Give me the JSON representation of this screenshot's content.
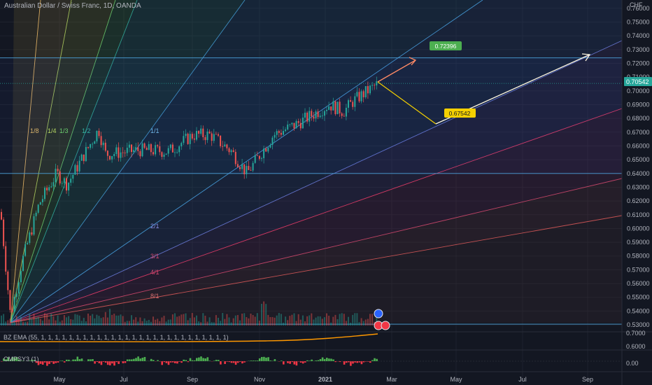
{
  "header": {
    "title": "Australian Dollar / Swiss Franc, 1D, OANDA",
    "currency": "CHF"
  },
  "price_axis": {
    "ticks": [
      "0.76000",
      "0.75000",
      "0.74000",
      "0.73000",
      "0.72000",
      "0.71000",
      "0.70000",
      "0.69000",
      "0.68000",
      "0.67000",
      "0.66000",
      "0.65000",
      "0.64000",
      "0.63000",
      "0.62000",
      "0.61000",
      "0.60000",
      "0.59000",
      "0.58000",
      "0.57000",
      "0.56000",
      "0.55000",
      "0.54000",
      "0.53000"
    ],
    "last_price": "0.70542",
    "last_price_color": "#26a69a"
  },
  "time_axis": {
    "ticks": [
      "May",
      "Jul",
      "Sep",
      "Nov",
      "2021",
      "Mar",
      "May",
      "Jul",
      "Sep"
    ]
  },
  "gann_fan": {
    "labels": [
      "1/8",
      "1/4",
      "1/3",
      "1/2",
      "1/1",
      "2/1",
      "3/1",
      "4/1",
      "8/1"
    ]
  },
  "annotations": {
    "target_up": "0.72396",
    "target_down": "0.67542",
    "target_up_color": "#4caf50",
    "target_down_color": "#f5d000"
  },
  "indicators": {
    "ema": {
      "label": "BZ EMA (55, 1, 1, 1, 1, 1, 1, 1, 1, 1, 1, 1, 1, 1, 1, 1, 1, 1, 1, 1, 1, 1, 1, 1, 1, 1, 1, 1)",
      "ticks": [
        "0.7000",
        "0.6000"
      ],
      "line_color": "#ff9800"
    },
    "cmp": {
      "label": "CMPSY3 (1)",
      "ticks": [
        "0.00"
      ],
      "up_color": "#4caf50",
      "down_color": "#f23645"
    }
  },
  "chart_data": {
    "type": "candlestick",
    "symbol": "Australian Dollar / Swiss Franc",
    "interval": "1D",
    "source": "OANDA",
    "ylim": [
      0.5285,
      0.7645
    ],
    "series": [
      {
        "name": "price",
        "points": [
          {
            "x": "Mar",
            "y": 0.612
          },
          {
            "x": "Mar",
            "y": 0.536
          },
          {
            "x": "Apr",
            "y": 0.575
          },
          {
            "x": "Apr",
            "y": 0.618
          },
          {
            "x": "May",
            "y": 0.64
          },
          {
            "x": "May",
            "y": 0.632
          },
          {
            "x": "Jun",
            "y": 0.672
          },
          {
            "x": "Jun",
            "y": 0.654
          },
          {
            "x": "Jul",
            "y": 0.657
          },
          {
            "x": "Aug",
            "y": 0.656
          },
          {
            "x": "Aug",
            "y": 0.668
          },
          {
            "x": "Sep",
            "y": 0.668
          },
          {
            "x": "Oct",
            "y": 0.656
          },
          {
            "x": "Oct",
            "y": 0.64
          },
          {
            "x": "Nov",
            "y": 0.668
          },
          {
            "x": "Dec",
            "y": 0.675
          },
          {
            "x": "Dec",
            "y": 0.69
          },
          {
            "x": "2021",
            "y": 0.685
          },
          {
            "x": "2021",
            "y": 0.693
          },
          {
            "x": "Feb",
            "y": 0.70542
          }
        ]
      }
    ],
    "horizontal_levels": [
      0.72396,
      0.64,
      0.5305
    ],
    "projections": [
      {
        "name": "up-projection",
        "from": 0.70542,
        "to": 0.72396
      },
      {
        "name": "down-projection",
        "from": 0.70542,
        "to": 0.67542
      },
      {
        "name": "rebound-projection",
        "from": 0.67542,
        "to": 0.72396
      }
    ]
  }
}
